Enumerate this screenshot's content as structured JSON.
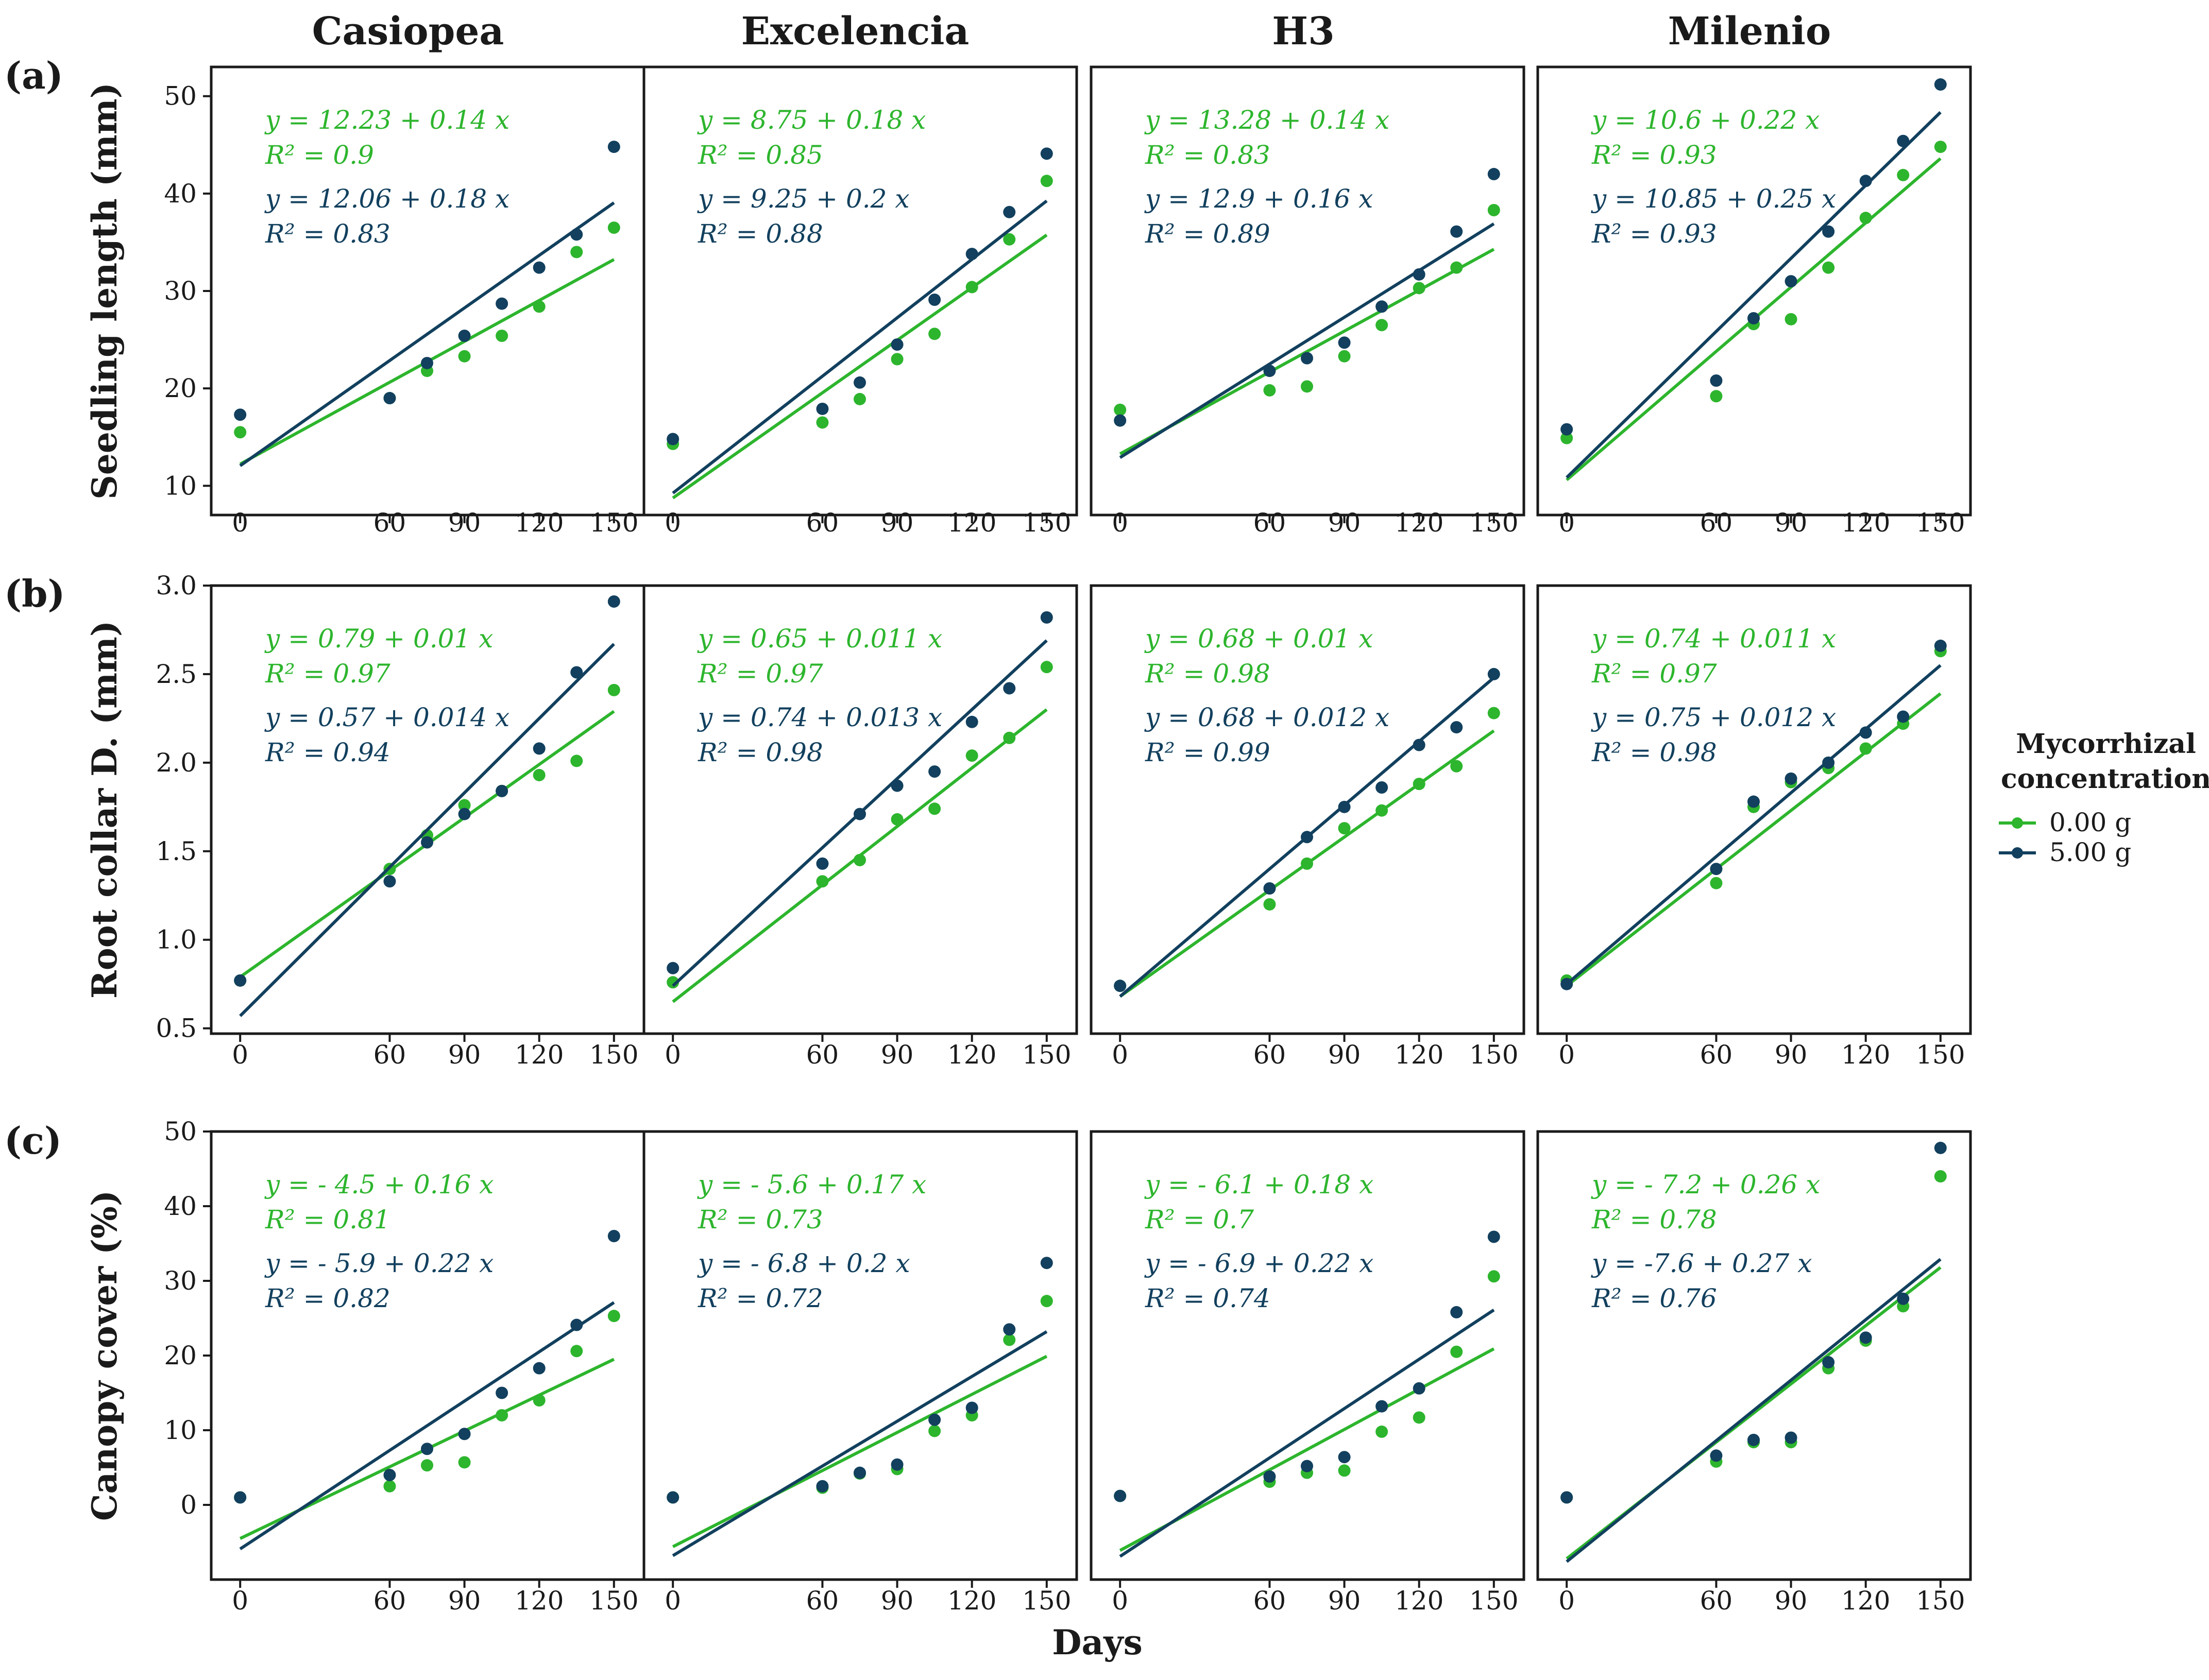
{
  "column_titles": [
    "Casiopea",
    "Excelencia",
    "H3",
    "Milenio"
  ],
  "row_tags": [
    "(a)",
    "(b)",
    "(c)"
  ],
  "x_axis_label": "Days",
  "legend": {
    "title_line1": "Mycorrhizal",
    "title_line2": "concentration",
    "items": [
      {
        "label": "0.00 g",
        "color": "#2db52d"
      },
      {
        "label": "5.00 g",
        "color": "#12405e"
      }
    ]
  },
  "colors": {
    "low": "#2db52d",
    "high": "#12405e"
  },
  "chart_data": [
    {
      "type": "scatter",
      "metric": "Seedling length (mm)",
      "ylabel": "Seedling length (mm)",
      "xlabel": "Days",
      "x": [
        0,
        60,
        75,
        90,
        105,
        120,
        135,
        150
      ],
      "x_ticks": [
        0,
        60,
        90,
        120,
        150
      ],
      "ylim": [
        7,
        53
      ],
      "y_ticks": [
        10,
        20,
        30,
        40,
        50
      ],
      "y_tick_labels": [
        "10",
        "20",
        "30",
        "40",
        "50"
      ],
      "panels": [
        {
          "cultivar": "Casiopea",
          "series": [
            {
              "name": "0.00 g",
              "values": [
                15.5,
                19.0,
                21.8,
                23.3,
                25.4,
                28.4,
                34.0,
                36.5
              ],
              "eq": "y = 12.23 + 0.14 x",
              "r2": "R² = 0.9",
              "intercept": 12.23,
              "slope": 0.14
            },
            {
              "name": "5.00 g",
              "values": [
                17.3,
                19.0,
                22.6,
                25.4,
                28.7,
                32.4,
                35.8,
                44.8
              ],
              "eq": "y = 12.06 + 0.18 x",
              "r2": "R² = 0.83",
              "intercept": 12.06,
              "slope": 0.18
            }
          ]
        },
        {
          "cultivar": "Excelencia",
          "series": [
            {
              "name": "0.00 g",
              "values": [
                14.3,
                16.5,
                18.9,
                23.0,
                25.6,
                30.4,
                35.3,
                41.3
              ],
              "eq": "y = 8.75 + 0.18 x",
              "r2": "R² = 0.85",
              "intercept": 8.75,
              "slope": 0.18
            },
            {
              "name": "5.00 g",
              "values": [
                14.8,
                17.9,
                20.6,
                24.5,
                29.1,
                33.8,
                38.1,
                44.1
              ],
              "eq": "y = 9.25 + 0.2 x",
              "r2": "R² = 0.88",
              "intercept": 9.25,
              "slope": 0.2
            }
          ]
        },
        {
          "cultivar": "H3",
          "series": [
            {
              "name": "0.00 g",
              "values": [
                17.8,
                19.8,
                20.2,
                23.3,
                26.5,
                30.3,
                32.4,
                38.3
              ],
              "eq": "y = 13.28 + 0.14 x",
              "r2": "R² = 0.83",
              "intercept": 13.28,
              "slope": 0.14
            },
            {
              "name": "5.00 g",
              "values": [
                16.7,
                21.8,
                23.1,
                24.7,
                28.4,
                31.7,
                36.1,
                42.0
              ],
              "eq": "y = 12.9 + 0.16 x",
              "r2": "R² = 0.89",
              "intercept": 12.9,
              "slope": 0.16
            }
          ]
        },
        {
          "cultivar": "Milenio",
          "series": [
            {
              "name": "0.00 g",
              "values": [
                14.9,
                19.2,
                26.6,
                27.1,
                32.4,
                37.5,
                41.9,
                44.8
              ],
              "eq": "y = 10.6 + 0.22 x",
              "r2": "R² = 0.93",
              "intercept": 10.6,
              "slope": 0.22
            },
            {
              "name": "5.00 g",
              "values": [
                15.8,
                20.8,
                27.2,
                31.0,
                36.1,
                41.3,
                45.4,
                51.2
              ],
              "eq": "y = 10.85 + 0.25 x",
              "r2": "R² = 0.93",
              "intercept": 10.85,
              "slope": 0.25
            }
          ]
        }
      ]
    },
    {
      "type": "scatter",
      "metric": "Root collar D. (mm)",
      "ylabel": "Root collar D. (mm)",
      "xlabel": "Days",
      "x": [
        0,
        60,
        75,
        90,
        105,
        120,
        135,
        150
      ],
      "x_ticks": [
        0,
        60,
        90,
        120,
        150
      ],
      "ylim": [
        0.47,
        3.0
      ],
      "y_ticks": [
        0.5,
        1.0,
        1.5,
        2.0,
        2.5,
        3.0
      ],
      "y_tick_labels": [
        "0.5",
        "1.0",
        "1.5",
        "2.0",
        "2.5",
        "3.0"
      ],
      "panels": [
        {
          "cultivar": "Casiopea",
          "series": [
            {
              "name": "0.00 g",
              "values": [
                0.77,
                1.4,
                1.59,
                1.76,
                1.84,
                1.93,
                2.01,
                2.41
              ],
              "eq": "y = 0.79 + 0.01 x",
              "r2": "R² = 0.97",
              "intercept": 0.79,
              "slope": 0.01
            },
            {
              "name": "5.00 g",
              "values": [
                0.77,
                1.33,
                1.55,
                1.71,
                1.84,
                2.08,
                2.51,
                2.91
              ],
              "eq": "y = 0.57 + 0.014 x",
              "r2": "R² = 0.94",
              "intercept": 0.57,
              "slope": 0.014
            }
          ]
        },
        {
          "cultivar": "Excelencia",
          "series": [
            {
              "name": "0.00 g",
              "values": [
                0.76,
                1.33,
                1.45,
                1.68,
                1.74,
                2.04,
                2.14,
                2.54
              ],
              "eq": "y = 0.65 + 0.011 x",
              "r2": "R² = 0.97",
              "intercept": 0.65,
              "slope": 0.011
            },
            {
              "name": "5.00 g",
              "values": [
                0.84,
                1.43,
                1.71,
                1.87,
                1.95,
                2.23,
                2.42,
                2.82
              ],
              "eq": "y = 0.74 + 0.013 x",
              "r2": "R² = 0.98",
              "intercept": 0.74,
              "slope": 0.013
            }
          ]
        },
        {
          "cultivar": "H3",
          "series": [
            {
              "name": "0.00 g",
              "values": [
                0.74,
                1.2,
                1.43,
                1.63,
                1.73,
                1.88,
                1.98,
                2.28
              ],
              "eq": "y = 0.68 + 0.01 x",
              "r2": "R² = 0.98",
              "intercept": 0.68,
              "slope": 0.01
            },
            {
              "name": "5.00 g",
              "values": [
                0.74,
                1.29,
                1.58,
                1.75,
                1.86,
                2.1,
                2.2,
                2.5
              ],
              "eq": "y = 0.68 + 0.012 x",
              "r2": "R² = 0.99",
              "intercept": 0.68,
              "slope": 0.012
            }
          ]
        },
        {
          "cultivar": "Milenio",
          "series": [
            {
              "name": "0.00 g",
              "values": [
                0.77,
                1.32,
                1.75,
                1.89,
                1.97,
                2.08,
                2.22,
                2.63
              ],
              "eq": "y = 0.74 + 0.011 x",
              "r2": "R² = 0.97",
              "intercept": 0.74,
              "slope": 0.011
            },
            {
              "name": "5.00 g",
              "values": [
                0.75,
                1.4,
                1.78,
                1.91,
                2.0,
                2.17,
                2.26,
                2.66
              ],
              "eq": "y = 0.75 + 0.012 x",
              "r2": "R² = 0.98",
              "intercept": 0.75,
              "slope": 0.012
            }
          ]
        }
      ]
    },
    {
      "type": "scatter",
      "metric": "Canopy cover (%)",
      "ylabel": "Canopy cover (%)",
      "xlabel": "Days",
      "x": [
        0,
        60,
        75,
        90,
        105,
        120,
        135,
        150
      ],
      "x_ticks": [
        0,
        60,
        90,
        120,
        150
      ],
      "ylim": [
        -10,
        50
      ],
      "y_ticks": [
        0,
        10,
        20,
        30,
        40,
        50
      ],
      "y_tick_labels": [
        "0",
        "10",
        "20",
        "30",
        "40",
        "50"
      ],
      "panels": [
        {
          "cultivar": "Casiopea",
          "series": [
            {
              "name": "0.00 g",
              "values": [
                1.0,
                2.5,
                5.3,
                5.7,
                12.0,
                14.0,
                20.6,
                25.3
              ],
              "eq": "y = - 4.5 + 0.16 x",
              "r2": "R² = 0.81",
              "intercept": -4.5,
              "slope": 0.16
            },
            {
              "name": "5.00 g",
              "values": [
                1.0,
                4.0,
                7.5,
                9.5,
                15.0,
                18.3,
                24.1,
                36.0
              ],
              "eq": "y = - 5.9 + 0.22 x",
              "r2": "R² = 0.82",
              "intercept": -5.9,
              "slope": 0.22
            }
          ]
        },
        {
          "cultivar": "Excelencia",
          "series": [
            {
              "name": "0.00 g",
              "values": [
                1.0,
                2.3,
                4.2,
                4.8,
                9.9,
                12.0,
                22.1,
                27.3
              ],
              "eq": "y = - 5.6 + 0.17 x",
              "r2": "R² = 0.73",
              "intercept": -5.6,
              "slope": 0.17
            },
            {
              "name": "5.00 g",
              "values": [
                1.0,
                2.5,
                4.3,
                5.4,
                11.4,
                13.0,
                23.5,
                32.4
              ],
              "eq": "y = - 6.8 + 0.2 x",
              "r2": "R² = 0.72",
              "intercept": -6.8,
              "slope": 0.2
            }
          ]
        },
        {
          "cultivar": "H3",
          "series": [
            {
              "name": "0.00 g",
              "values": [
                1.2,
                3.1,
                4.3,
                4.6,
                9.8,
                11.7,
                20.5,
                30.6
              ],
              "eq": "y = - 6.1 + 0.18 x",
              "r2": "R² = 0.7",
              "intercept": -6.1,
              "slope": 0.18
            },
            {
              "name": "5.00 g",
              "values": [
                1.2,
                3.8,
                5.2,
                6.4,
                13.2,
                15.6,
                25.8,
                35.9
              ],
              "eq": "y = - 6.9 + 0.22 x",
              "r2": "R² = 0.74",
              "intercept": -6.9,
              "slope": 0.22
            }
          ]
        },
        {
          "cultivar": "Milenio",
          "series": [
            {
              "name": "0.00 g",
              "values": [
                1.0,
                5.8,
                8.4,
                8.4,
                18.3,
                22.0,
                26.6,
                44.0
              ],
              "eq": "y = - 7.2 + 0.26 x",
              "r2": "R² = 0.78",
              "intercept": -7.2,
              "slope": 0.26
            },
            {
              "name": "5.00 g",
              "values": [
                1.0,
                6.6,
                8.7,
                9.0,
                19.1,
                22.4,
                27.6,
                47.8
              ],
              "eq": "y = -7.6 + 0.27 x",
              "r2": "R² = 0.76",
              "intercept": -7.6,
              "slope": 0.27
            }
          ]
        }
      ]
    }
  ]
}
